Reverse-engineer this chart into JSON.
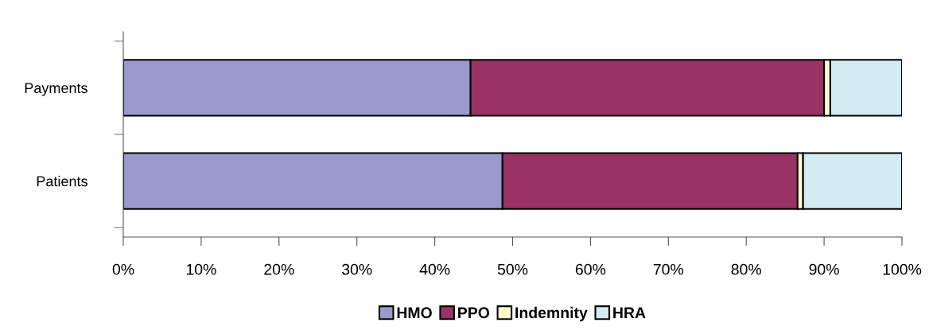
{
  "chart_data": {
    "type": "bar",
    "orientation": "horizontal",
    "stacked": true,
    "categories": [
      "Payments",
      "Patients"
    ],
    "series": [
      {
        "name": "HMO",
        "color": "#9999cc",
        "values": [
          44.6,
          48.7
        ]
      },
      {
        "name": "PPO",
        "color": "#993366",
        "values": [
          45.4,
          37.9
        ]
      },
      {
        "name": "Indemnity",
        "color": "#ffffcc",
        "values": [
          0.8,
          0.7
        ]
      },
      {
        "name": "HRA",
        "color": "#d3ecf2",
        "values": [
          9.2,
          12.7
        ]
      }
    ],
    "xlim": [
      0,
      100
    ],
    "xticks": [
      {
        "value": 0,
        "label": "0%"
      },
      {
        "value": 10,
        "label": "10%"
      },
      {
        "value": 20,
        "label": "20%"
      },
      {
        "value": 30,
        "label": "30%"
      },
      {
        "value": 40,
        "label": "40%"
      },
      {
        "value": 50,
        "label": "50%"
      },
      {
        "value": 60,
        "label": "60%"
      },
      {
        "value": 70,
        "label": "70%"
      },
      {
        "value": 80,
        "label": "80%"
      },
      {
        "value": 90,
        "label": "90%"
      },
      {
        "value": 100,
        "label": "100%"
      }
    ],
    "grid": false,
    "legend": "bottom"
  }
}
